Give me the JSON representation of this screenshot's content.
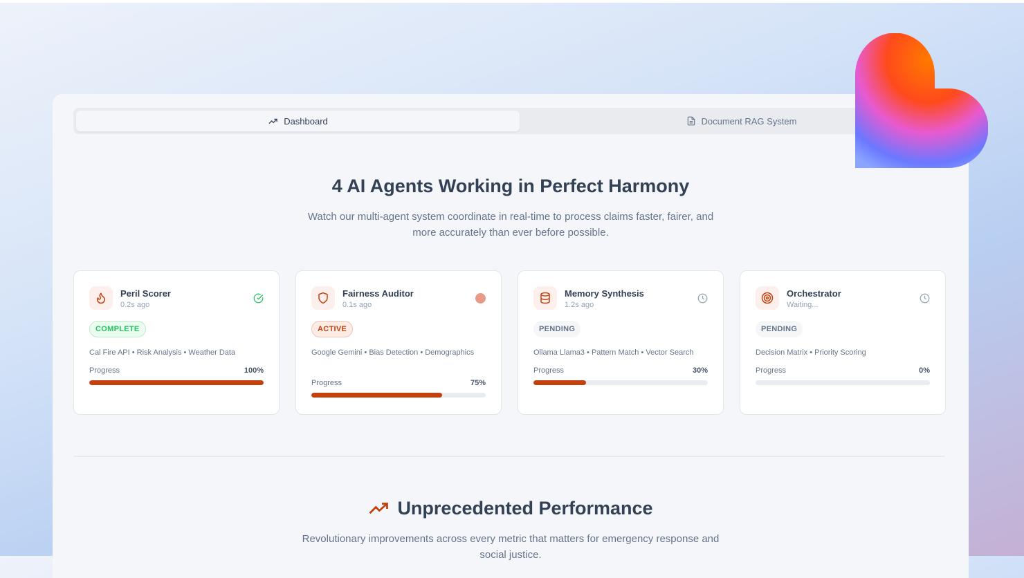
{
  "tabs": [
    {
      "label": "Dashboard",
      "icon": "trending-up-icon",
      "active": true
    },
    {
      "label": "Document RAG System",
      "icon": "document-icon",
      "active": false
    }
  ],
  "hero": {
    "title": "4 AI Agents Working in Perfect Harmony",
    "subtitle": "Watch our multi-agent system coordinate in real-time to process claims faster, fairer, and more accurately than ever before possible."
  },
  "agents": [
    {
      "name": "Peril Scorer",
      "time": "0.2s ago",
      "icon": "flame-icon",
      "status_icon": "check-circle-icon",
      "status": "COMPLETE",
      "tags": "Cal Fire API • Risk Analysis • Weather Data",
      "progress_label": "Progress",
      "progress": 100,
      "progress_text": "100%"
    },
    {
      "name": "Fairness Auditor",
      "time": "0.1s ago",
      "icon": "shield-icon",
      "status_icon": "active-dot-icon",
      "status": "ACTIVE",
      "tags": "Google Gemini • Bias Detection • Demographics",
      "progress_label": "Progress",
      "progress": 75,
      "progress_text": "75%"
    },
    {
      "name": "Memory Synthesis",
      "time": "1.2s ago",
      "icon": "database-icon",
      "status_icon": "clock-icon",
      "status": "PENDING",
      "tags": "Ollama Llama3 • Pattern Match • Vector Search",
      "progress_label": "Progress",
      "progress": 30,
      "progress_text": "30%"
    },
    {
      "name": "Orchestrator",
      "time": "Waiting...",
      "icon": "target-icon",
      "status_icon": "clock-icon",
      "status": "PENDING",
      "tags": "Decision Matrix • Priority Scoring",
      "progress_label": "Progress",
      "progress": 0,
      "progress_text": "0%"
    }
  ],
  "performance": {
    "title": "Unprecedented Performance",
    "subtitle": "Revolutionary improvements across every metric that matters for emergency response and social justice."
  },
  "colors": {
    "accent": "#c2410c",
    "complete": "#22c55e",
    "active_dot": "#e79c88",
    "muted": "#94a3b8"
  }
}
